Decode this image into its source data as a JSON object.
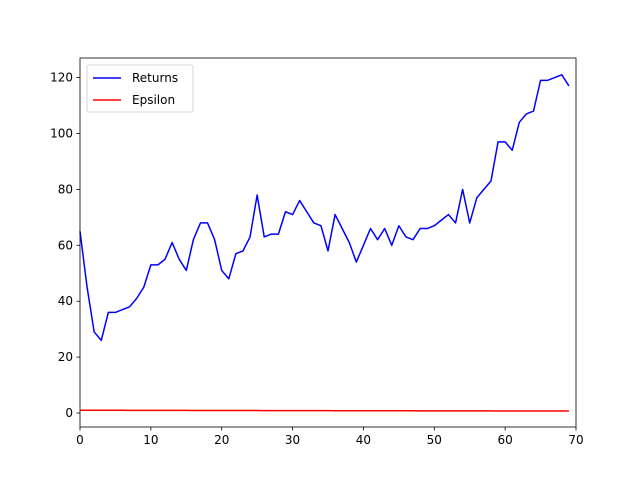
{
  "chart_data": {
    "type": "line",
    "title": "",
    "xlabel": "",
    "ylabel": "",
    "xlim": [
      0,
      70
    ],
    "ylim": [
      -5,
      127
    ],
    "xticks": [
      0,
      10,
      20,
      30,
      40,
      50,
      60,
      70
    ],
    "yticks": [
      0,
      20,
      40,
      60,
      80,
      100,
      120
    ],
    "grid": false,
    "legend_position": "upper-left",
    "series": [
      {
        "name": "Returns",
        "color": "#0000ff",
        "x": [
          0,
          1,
          2,
          3,
          4,
          5,
          6,
          7,
          8,
          9,
          10,
          11,
          12,
          13,
          14,
          15,
          16,
          17,
          18,
          19,
          20,
          21,
          22,
          23,
          24,
          25,
          26,
          27,
          28,
          29,
          30,
          31,
          32,
          33,
          34,
          35,
          36,
          37,
          38,
          39,
          40,
          41,
          42,
          43,
          44,
          45,
          46,
          47,
          48,
          49,
          50,
          51,
          52,
          53,
          54,
          55,
          56,
          57,
          58,
          59,
          60,
          61,
          62,
          63,
          64,
          65,
          66,
          67,
          68,
          69
        ],
        "values": [
          65,
          45,
          29,
          26,
          36,
          36,
          37,
          38,
          41,
          45,
          53,
          53,
          55,
          61,
          55,
          51,
          62,
          68,
          68,
          62,
          51,
          48,
          57,
          58,
          63,
          78,
          63,
          64,
          64,
          72,
          71,
          76,
          72,
          68,
          67,
          58,
          71,
          66,
          61,
          54,
          60,
          66,
          62,
          66,
          60,
          67,
          63,
          62,
          66,
          66,
          67,
          69,
          71,
          68,
          80,
          68,
          77,
          80,
          83,
          97,
          97,
          94,
          104,
          107,
          108,
          119,
          119,
          120,
          121,
          117
        ]
      },
      {
        "name": "Epsilon",
        "color": "#ff0000",
        "x": [
          0,
          1,
          2,
          3,
          4,
          5,
          6,
          7,
          8,
          9,
          10,
          11,
          12,
          13,
          14,
          15,
          16,
          17,
          18,
          19,
          20,
          21,
          22,
          23,
          24,
          25,
          26,
          27,
          28,
          29,
          30,
          31,
          32,
          33,
          34,
          35,
          36,
          37,
          38,
          39,
          40,
          41,
          42,
          43,
          44,
          45,
          46,
          47,
          48,
          49,
          50,
          51,
          52,
          53,
          54,
          55,
          56,
          57,
          58,
          59,
          60,
          61,
          62,
          63,
          64,
          65,
          66,
          67,
          68,
          69
        ],
        "values": [
          1.0,
          0.995,
          0.99,
          0.985,
          0.98,
          0.975,
          0.97,
          0.966,
          0.961,
          0.956,
          0.951,
          0.946,
          0.942,
          0.937,
          0.932,
          0.928,
          0.923,
          0.918,
          0.914,
          0.909,
          0.905,
          0.9,
          0.896,
          0.891,
          0.887,
          0.882,
          0.878,
          0.873,
          0.869,
          0.865,
          0.86,
          0.856,
          0.852,
          0.848,
          0.843,
          0.839,
          0.835,
          0.831,
          0.827,
          0.822,
          0.818,
          0.814,
          0.81,
          0.806,
          0.802,
          0.798,
          0.794,
          0.79,
          0.786,
          0.782,
          0.778,
          0.774,
          0.771,
          0.767,
          0.763,
          0.759,
          0.755,
          0.751,
          0.748,
          0.744,
          0.74,
          0.737,
          0.733,
          0.729,
          0.726,
          0.722,
          0.718,
          0.715,
          0.711,
          0.708
        ]
      }
    ]
  }
}
